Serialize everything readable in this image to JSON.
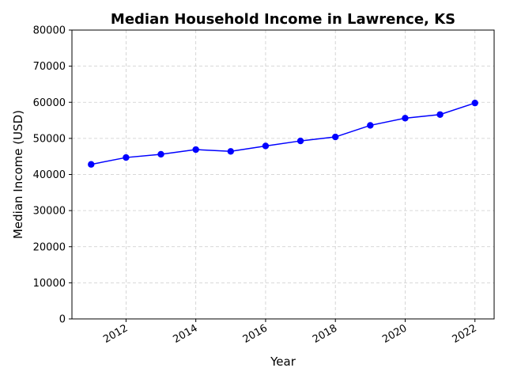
{
  "chart_data": {
    "type": "line",
    "title": "Median Household Income in Lawrence, KS",
    "xlabel": "Year",
    "ylabel": "Median Income (USD)",
    "xlim": [
      2010.45,
      2022.55
    ],
    "ylim": [
      0,
      80000
    ],
    "x_ticks": [
      2012,
      2014,
      2016,
      2018,
      2020,
      2022
    ],
    "y_ticks": [
      0,
      10000,
      20000,
      30000,
      40000,
      50000,
      60000,
      70000,
      80000
    ],
    "grid": true,
    "legend": "none",
    "series": [
      {
        "color": "#0000ff",
        "marker": "circle",
        "x": [
          2011,
          2012,
          2013,
          2014,
          2015,
          2016,
          2017,
          2018,
          2019,
          2020,
          2021,
          2022
        ],
        "values": [
          42800,
          44700,
          45600,
          46900,
          46400,
          47900,
          49300,
          50400,
          53600,
          55600,
          56600,
          59800
        ]
      }
    ]
  }
}
